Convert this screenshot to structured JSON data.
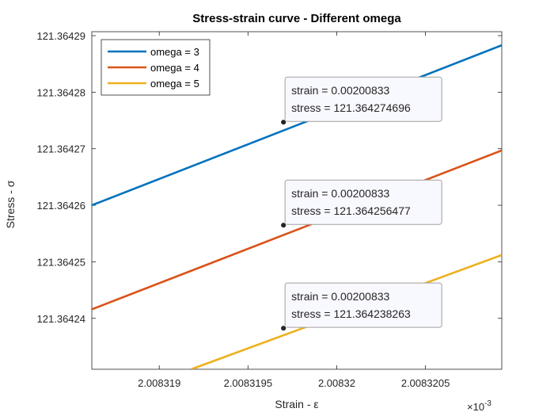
{
  "chart_data": {
    "type": "line",
    "title": "Stress-strain curve - Different omega",
    "xlabel": "Strain - ε",
    "ylabel": "Stress - σ",
    "x_exponent_label": "×10",
    "x_exponent_power": "-3",
    "xlim": [
      2.00831862,
      2.00832093
    ],
    "ylim": [
      121.364231,
      121.3642907
    ],
    "x_ticks": [
      2.008319,
      2.0083195,
      2.00832,
      2.0083205
    ],
    "x_tick_labels": [
      "2.008319",
      "2.0083195",
      "2.00832",
      "2.0083205"
    ],
    "y_ticks": [
      121.36424,
      121.36425,
      121.36426,
      121.36427,
      121.36428,
      121.36429
    ],
    "y_tick_labels": [
      "121.36424",
      "121.36425",
      "121.36426",
      "121.36427",
      "121.36428",
      "121.36429"
    ],
    "grid": false,
    "legend_position": "top-left",
    "series": [
      {
        "name": "omega = 3",
        "color": "#0072BD",
        "x": [
          2.00831862,
          2.00832093
        ],
        "y": [
          121.36426,
          121.3642883
        ]
      },
      {
        "name": "omega = 4",
        "color": "#D95319",
        "x": [
          2.00831862,
          2.00832093
        ],
        "y": [
          121.3642416,
          121.3642697
        ]
      },
      {
        "name": "omega = 5",
        "color": "#EDB120",
        "x": [
          2.00831918,
          2.00832093
        ],
        "y": [
          121.364231,
          121.3642512
        ]
      }
    ],
    "datatips": [
      {
        "series": 0,
        "x": 2.0083197,
        "y": 121.364274696,
        "line1": "strain = 0.00200833",
        "line2": "stress = 121.364274696"
      },
      {
        "series": 1,
        "x": 2.0083197,
        "y": 121.364256477,
        "line1": "strain = 0.00200833",
        "line2": "stress = 121.364256477"
      },
      {
        "series": 2,
        "x": 2.0083197,
        "y": 121.364238263,
        "line1": "strain = 0.00200833",
        "line2": "stress = 121.364238263"
      }
    ]
  }
}
